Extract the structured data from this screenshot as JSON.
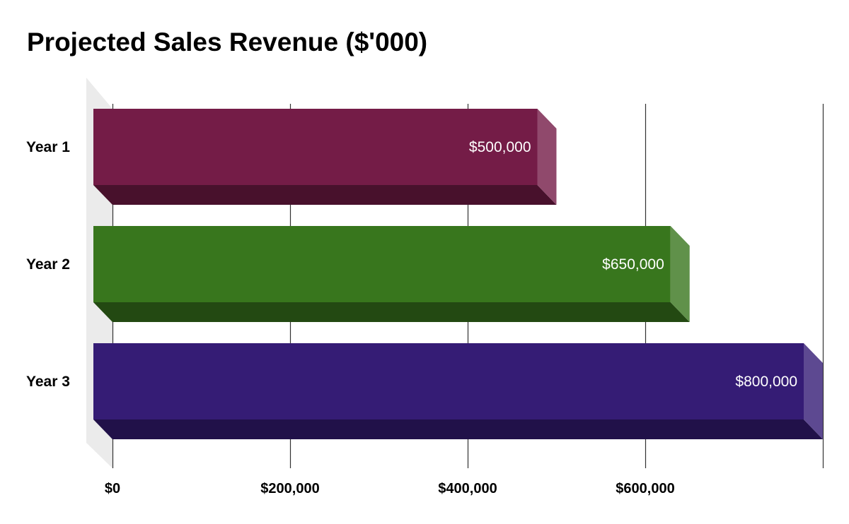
{
  "chart_data": {
    "type": "bar",
    "orientation": "horizontal",
    "style": "3d",
    "title": "Projected Sales Revenue ($'000)",
    "categories": [
      "Year 1",
      "Year 2",
      "Year 3"
    ],
    "values": [
      500000,
      650000,
      800000
    ],
    "data_labels": [
      "$500,000",
      "$650,000",
      "$800,000"
    ],
    "bar_colors": [
      "#741c47",
      "#38761d",
      "#351c75"
    ],
    "x_ticks": [
      0,
      200000,
      400000,
      600000,
      800000
    ],
    "x_tick_labels": [
      "$0",
      "$200,000",
      "$400,000",
      "$600,000",
      ""
    ],
    "xlim": [
      0,
      800000
    ],
    "grid": true,
    "legend": "none",
    "xlabel": "",
    "ylabel": ""
  }
}
